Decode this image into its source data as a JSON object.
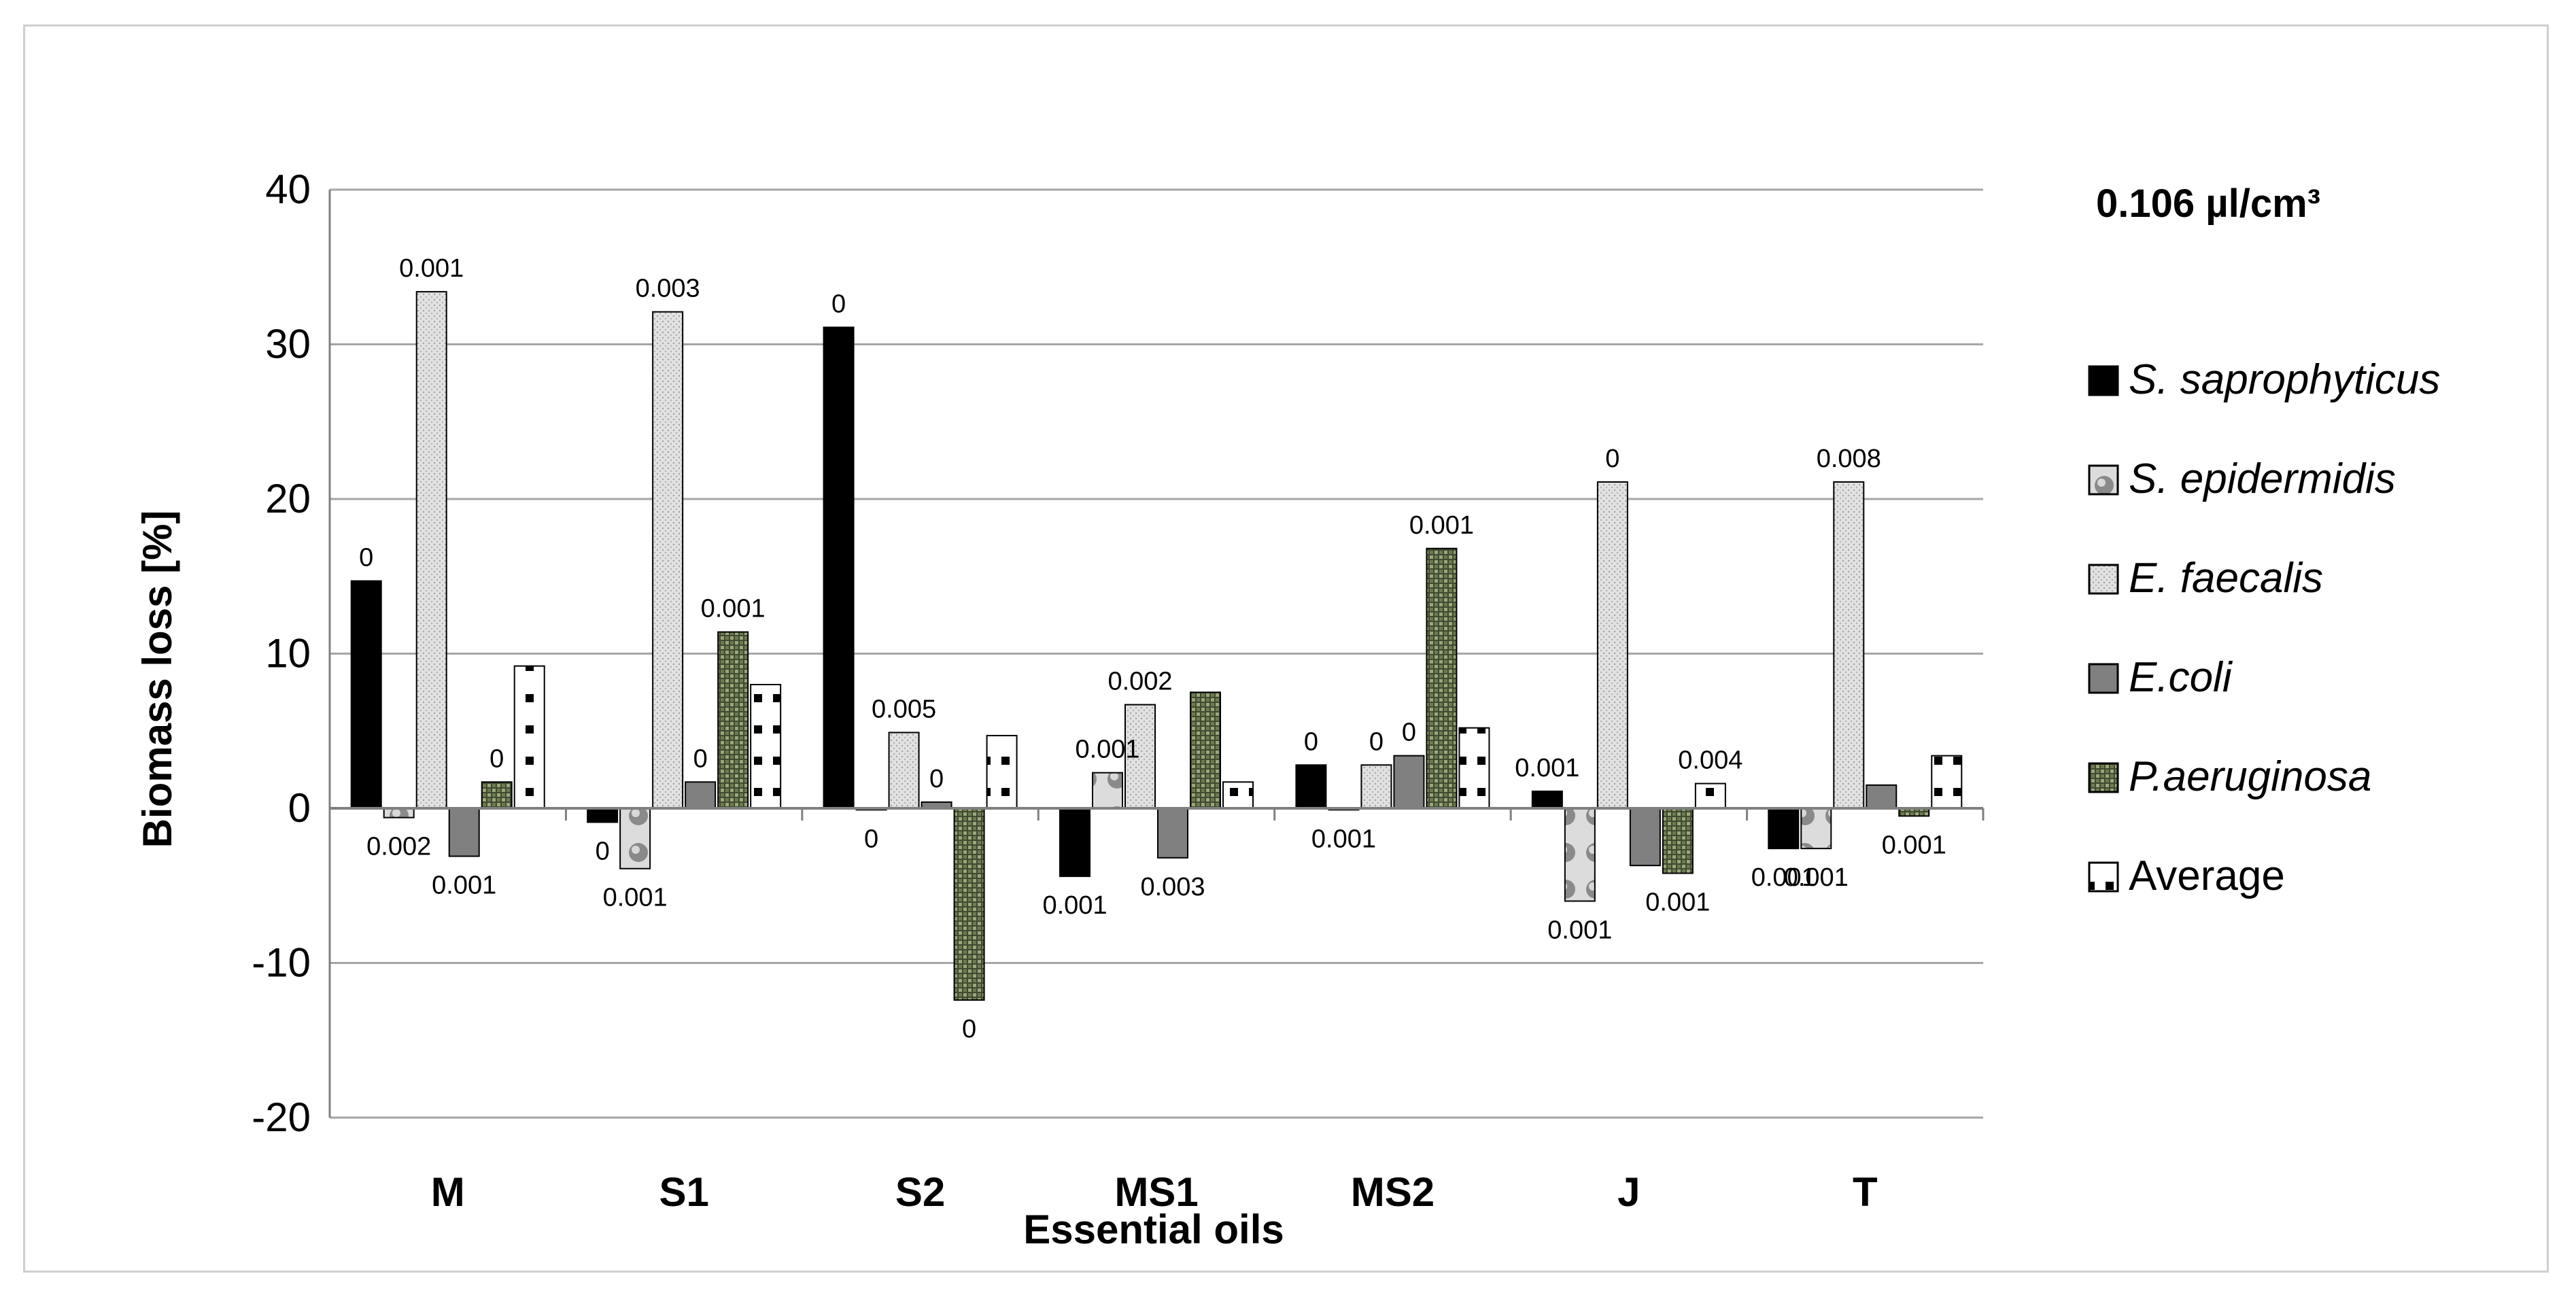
{
  "chart_data": {
    "type": "bar",
    "title": "",
    "concentration_label": "0.106 µl/cm³",
    "xlabel": "Essential oils",
    "ylabel": "Biomass loss [%]",
    "ylim": [
      -20,
      40
    ],
    "yticks": [
      -20,
      -10,
      0,
      10,
      20,
      30,
      40
    ],
    "grid": true,
    "legend_position": "right",
    "categories": [
      "M",
      "S1",
      "S2",
      "MS1",
      "MS2",
      "J",
      "T"
    ],
    "series": [
      {
        "name": "S. saprophyticus",
        "italic": true,
        "pattern": "solid-black",
        "values": [
          14.7,
          -0.9,
          31.1,
          -4.4,
          2.8,
          1.1,
          -2.6
        ],
        "labels": [
          "0",
          "0",
          "0",
          "0.001",
          "0",
          "0.001",
          "0.001"
        ]
      },
      {
        "name": "S. epidermidis",
        "italic": true,
        "pattern": "spheres",
        "values": [
          -0.6,
          -3.9,
          -0.1,
          2.3,
          -0.1,
          -6.0,
          -2.6
        ],
        "labels": [
          "0.002",
          "0.001",
          "0",
          "0.001",
          "0.001",
          "0.001",
          "0.001"
        ]
      },
      {
        "name": "E. faecalis",
        "italic": true,
        "pattern": "dotted-light",
        "values": [
          33.4,
          32.1,
          4.9,
          6.7,
          2.8,
          21.1,
          21.1
        ],
        "labels": [
          "0.001",
          "0.003",
          "0.005",
          "0.002",
          "0",
          "0",
          "0.008"
        ]
      },
      {
        "name": "E.coli",
        "italic": true,
        "pattern": "solid-gray",
        "values": [
          -3.1,
          1.7,
          0.4,
          -3.2,
          3.4,
          -3.7,
          1.5
        ],
        "labels": [
          "0.001",
          "0",
          "0",
          "0.003",
          "0",
          "",
          ""
        ]
      },
      {
        "name": "P.aeruginosa",
        "italic": true,
        "pattern": "green-grid",
        "values": [
          1.7,
          11.4,
          -12.4,
          7.5,
          16.8,
          -4.2,
          -0.5
        ],
        "labels": [
          "0",
          "0.001",
          "0",
          "",
          "0.001",
          "0.001",
          "0.001"
        ]
      },
      {
        "name": "Average",
        "italic": false,
        "pattern": "black-squares",
        "values": [
          9.2,
          8.0,
          4.7,
          1.7,
          5.2,
          1.6,
          3.4
        ],
        "labels": [
          "",
          "",
          "",
          "",
          "",
          "0.004",
          ""
        ]
      }
    ]
  }
}
